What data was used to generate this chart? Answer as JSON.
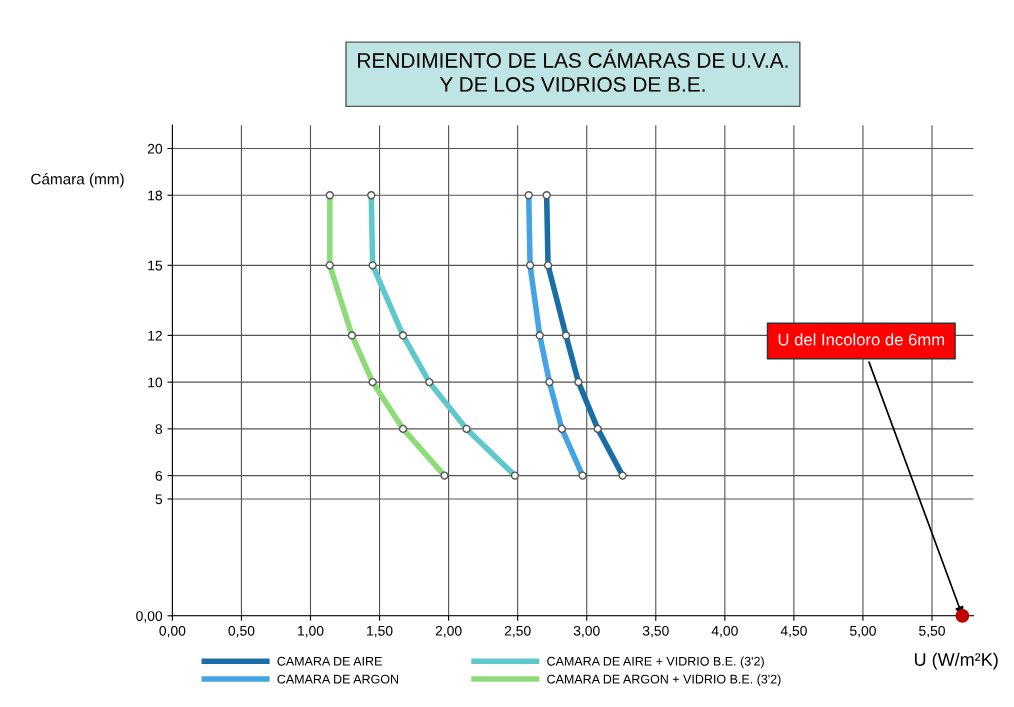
{
  "chart_data": {
    "type": "line",
    "title": "RENDIMIENTO DE LAS CÁMARAS DE U.V.A.\nY DE LOS VIDRIOS DE B.E.",
    "xlabel": "U (W/m²K)",
    "ylabel": "Cámara (mm)",
    "series": [
      {
        "name": "CAMARA DE AIRE",
        "color": "#1a6ea6",
        "x": [
          3.26,
          3.08,
          2.94,
          2.85,
          2.72,
          2.71
        ],
        "values": [
          6,
          8,
          10,
          12,
          15,
          18
        ]
      },
      {
        "name": "CAMARA DE ARGON",
        "color": "#43a3e3",
        "x": [
          2.97,
          2.82,
          2.73,
          2.66,
          2.59,
          2.58
        ],
        "values": [
          6,
          8,
          10,
          12,
          15,
          18
        ]
      },
      {
        "name": "CAMARA DE AIRE + VIDRIO B.E. (3'2)",
        "color": "#5ec8cc",
        "x": [
          2.48,
          2.13,
          1.86,
          1.67,
          1.45,
          1.44
        ],
        "values": [
          6,
          8,
          10,
          12,
          15,
          18
        ]
      },
      {
        "name": "CAMARA DE ARGON + VIDRIO B.E. (3'2)",
        "color": "#8ddc78",
        "x": [
          1.97,
          1.67,
          1.45,
          1.3,
          1.14,
          1.14
        ],
        "values": [
          6,
          8,
          10,
          12,
          15,
          18
        ]
      },
      {
        "type": "scatter",
        "color": "#c00000",
        "x": [
          5.72
        ],
        "values": [
          0
        ]
      }
    ],
    "annotations": [
      {
        "text": "U del Incoloro de 6mm",
        "x": 5.72,
        "y": 0
      }
    ],
    "xlim": [
      0,
      5.8
    ],
    "ylim": [
      0,
      21
    ],
    "xticks": [
      {
        "value": 0,
        "label": "0,00"
      },
      {
        "value": 0.5,
        "label": "0,50"
      },
      {
        "value": 1,
        "label": "1,00"
      },
      {
        "value": 1.5,
        "label": "1,50"
      },
      {
        "value": 2,
        "label": "2,00"
      },
      {
        "value": 2.5,
        "label": "2,50"
      },
      {
        "value": 3,
        "label": "3,00"
      },
      {
        "value": 3.5,
        "label": "3,50"
      },
      {
        "value": 4,
        "label": "4,00"
      },
      {
        "value": 4.5,
        "label": "4,50"
      },
      {
        "value": 5,
        "label": "5,00"
      },
      {
        "value": 5.5,
        "label": "5,50"
      }
    ],
    "yticks": [
      {
        "value": 0,
        "label": "0,00"
      },
      5,
      6,
      8,
      10,
      12,
      15,
      18,
      20
    ],
    "grid": true,
    "legend": "bottom",
    "marker": "circle",
    "line_style": "solid"
  }
}
